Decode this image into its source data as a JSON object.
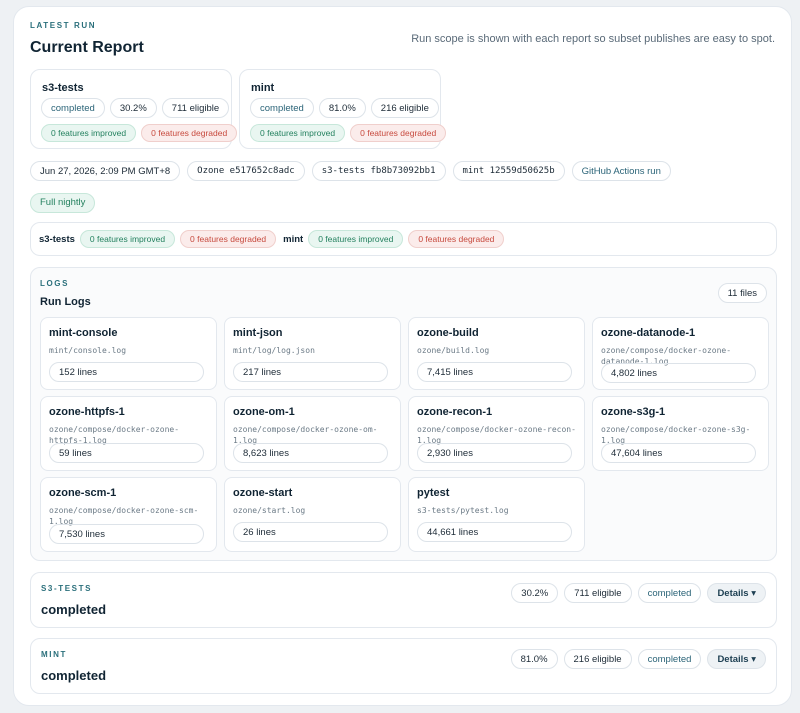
{
  "header": {
    "eyebrow": "LATEST RUN",
    "title": "Current Report",
    "note": "Run scope is shown with each report so subset publishes are easy to spot."
  },
  "suites": [
    {
      "name": "s3-tests",
      "status": "completed",
      "pass_rate": "30.2%",
      "eligible": "711 eligible",
      "improved": "0 features improved",
      "degraded": "0 features degraded"
    },
    {
      "name": "mint",
      "status": "completed",
      "pass_rate": "81.0%",
      "eligible": "216 eligible",
      "improved": "0 features improved",
      "degraded": "0 features degraded"
    }
  ],
  "meta": {
    "timestamp": "Jun 27, 2026, 2:09 PM GMT+8",
    "ozone_commit": "Ozone e517652c8adc",
    "s3tests_commit": "s3-tests fb8b73092bb1",
    "mint_commit": "mint 12559d50625b",
    "actions_link": "GitHub Actions run",
    "scope": "Full nightly"
  },
  "summary": {
    "s3_label": "s3-tests",
    "s3_improved": "0 features improved",
    "s3_degraded": "0 features degraded",
    "mint_label": "mint",
    "mint_improved": "0 features improved",
    "mint_degraded": "0 features degraded"
  },
  "logs": {
    "eyebrow": "LOGS",
    "title": "Run Logs",
    "file_count": "11 files",
    "items": [
      {
        "name": "mint-console",
        "path": "mint/console.log",
        "lines": "152 lines"
      },
      {
        "name": "mint-json",
        "path": "mint/log/log.json",
        "lines": "217 lines"
      },
      {
        "name": "ozone-build",
        "path": "ozone/build.log",
        "lines": "7,415 lines"
      },
      {
        "name": "ozone-datanode-1",
        "path": "ozone/compose/docker-ozone-datanode-1.log",
        "lines": "4,802 lines"
      },
      {
        "name": "ozone-httpfs-1",
        "path": "ozone/compose/docker-ozone-httpfs-1.log",
        "lines": "59 lines"
      },
      {
        "name": "ozone-om-1",
        "path": "ozone/compose/docker-ozone-om-1.log",
        "lines": "8,623 lines"
      },
      {
        "name": "ozone-recon-1",
        "path": "ozone/compose/docker-ozone-recon-1.log",
        "lines": "2,930 lines"
      },
      {
        "name": "ozone-s3g-1",
        "path": "ozone/compose/docker-ozone-s3g-1.log",
        "lines": "47,604 lines"
      },
      {
        "name": "ozone-scm-1",
        "path": "ozone/compose/docker-ozone-scm-1.log",
        "lines": "7,530 lines"
      },
      {
        "name": "ozone-start",
        "path": "ozone/start.log",
        "lines": "26 lines"
      },
      {
        "name": "pytest",
        "path": "s3-tests/pytest.log",
        "lines": "44,661 lines"
      }
    ]
  },
  "sections": [
    {
      "eyebrow": "S3-TESTS",
      "status": "completed",
      "pass_rate": "30.2%",
      "eligible": "711 eligible",
      "chip_status": "completed",
      "details": "Details ▾"
    },
    {
      "eyebrow": "MINT",
      "status": "completed",
      "pass_rate": "81.0%",
      "eligible": "216 eligible",
      "chip_status": "completed",
      "details": "Details ▾"
    }
  ]
}
